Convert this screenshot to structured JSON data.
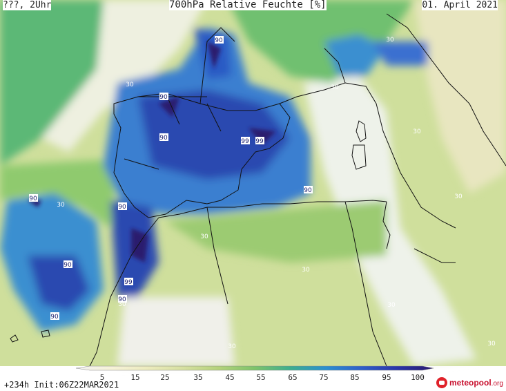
{
  "header": {
    "left": "???, 2Uhr",
    "title": "700hPa Relative Feuchte [%]",
    "date": "01. April 2021"
  },
  "footer": {
    "run_info": "+234h  Init:06Z22MAR2021",
    "logo_main": "meteo",
    "logo_accent": "pool",
    "logo_tld": ".org"
  },
  "legend": {
    "ticks": [
      "5",
      "15",
      "25",
      "35",
      "45",
      "55",
      "65",
      "75",
      "85",
      "95",
      "100"
    ],
    "colors": [
      "#f2f2f2",
      "#f6f2d8",
      "#ecebbd",
      "#d6e0a0",
      "#b4d27a",
      "#7ec46a",
      "#3cae8e",
      "#2a8fd0",
      "#2f5fc8",
      "#2a35a8",
      "#2b1a6e"
    ]
  },
  "contour_labels": [
    {
      "text": "90"
    },
    {
      "text": "90"
    },
    {
      "text": "90"
    },
    {
      "text": "90"
    },
    {
      "text": "99"
    },
    {
      "text": "99"
    },
    {
      "text": "90"
    },
    {
      "text": "90"
    },
    {
      "text": "90"
    },
    {
      "text": "90"
    },
    {
      "text": "99"
    },
    {
      "text": "90"
    },
    {
      "text": "90"
    },
    {
      "text": "30"
    },
    {
      "text": "30"
    },
    {
      "text": "30"
    },
    {
      "text": "30"
    },
    {
      "text": "30"
    },
    {
      "text": "30"
    },
    {
      "text": "30"
    },
    {
      "text": "30"
    },
    {
      "text": "30"
    },
    {
      "text": "30"
    },
    {
      "text": "30"
    },
    {
      "text": "30"
    }
  ]
}
